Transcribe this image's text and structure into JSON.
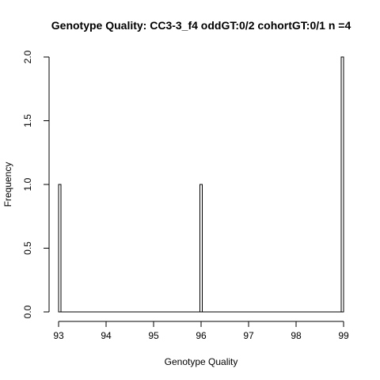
{
  "chart_data": {
    "type": "bar",
    "title": "Genotype Quality: CC3-3_f4 oddGT:0/2  cohortGT:0/1 n =4",
    "xlabel": "Genotype Quality",
    "ylabel": "Frequency",
    "xlim": [
      93,
      99
    ],
    "ylim": [
      0,
      2
    ],
    "x_ticks": [
      "93",
      "94",
      "95",
      "96",
      "97",
      "98",
      "99"
    ],
    "y_ticks": [
      "0.0",
      "0.5",
      "1.0",
      "1.5",
      "2.0"
    ],
    "bin_width": 0.05,
    "bars": [
      {
        "x": 93,
        "value": 1
      },
      {
        "x": 96,
        "value": 1
      },
      {
        "x": 99,
        "value": 2
      }
    ],
    "colors": {
      "bar_fill": "#ffffff",
      "bar_stroke": "#000000"
    }
  }
}
